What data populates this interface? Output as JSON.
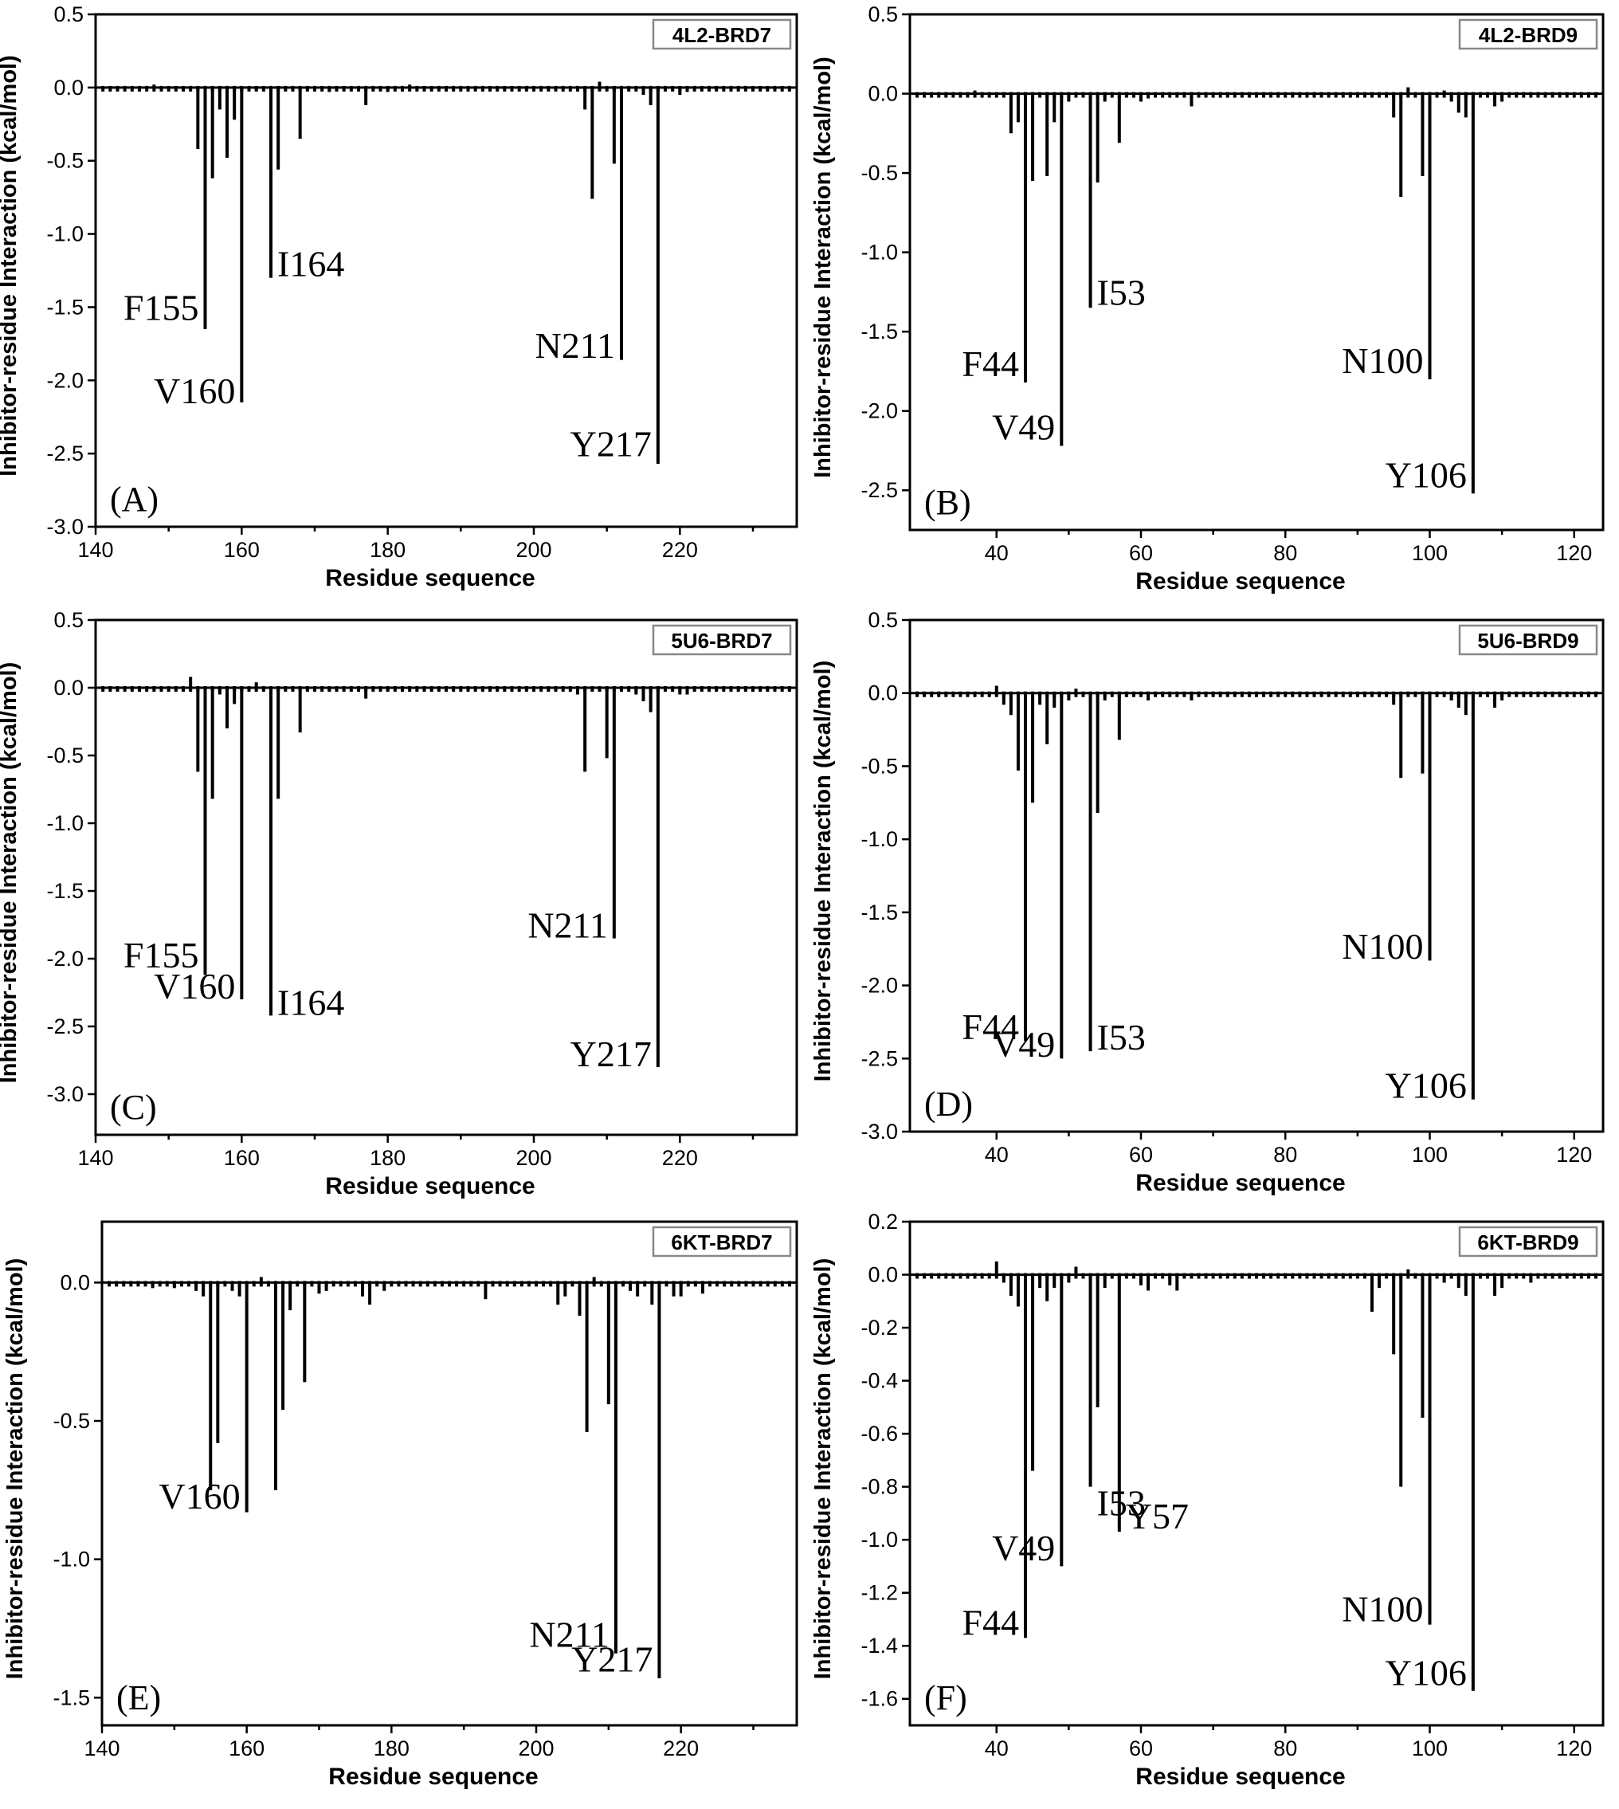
{
  "chart_data": [
    {
      "type": "bar",
      "panel_label": "(A)",
      "tag": "4L2-BRD7",
      "xlabel": "Residue sequence",
      "ylabel": "Inhibitor-residue Interaction (kcal/mol)",
      "xlim": [
        140,
        236
      ],
      "ylim": [
        -3.0,
        0.5
      ],
      "xticks": [
        140,
        160,
        180,
        200,
        220
      ],
      "yticks": [
        0.5,
        0.0,
        -0.5,
        -1.0,
        -1.5,
        -2.0,
        -2.5,
        -3.0
      ],
      "ytick_labels": [
        "0.5",
        "0.0",
        "-0.5",
        "-1.0",
        "-1.5",
        "-2.0",
        "-2.5",
        "-3.0"
      ],
      "bars": [
        {
          "x": 148,
          "value": 0.02
        },
        {
          "x": 152,
          "value": -0.02
        },
        {
          "x": 154,
          "value": -0.42
        },
        {
          "x": 155,
          "value": -1.65
        },
        {
          "x": 156,
          "value": -0.62
        },
        {
          "x": 157,
          "value": -0.15
        },
        {
          "x": 158,
          "value": -0.48
        },
        {
          "x": 159,
          "value": -0.22
        },
        {
          "x": 160,
          "value": -2.15
        },
        {
          "x": 162,
          "value": -0.02
        },
        {
          "x": 164,
          "value": -1.3
        },
        {
          "x": 165,
          "value": -0.56
        },
        {
          "x": 168,
          "value": -0.35
        },
        {
          "x": 172,
          "value": -0.03
        },
        {
          "x": 177,
          "value": -0.12
        },
        {
          "x": 180,
          "value": -0.03
        },
        {
          "x": 183,
          "value": 0.02
        },
        {
          "x": 207,
          "value": -0.15
        },
        {
          "x": 208,
          "value": -0.76
        },
        {
          "x": 209,
          "value": 0.04
        },
        {
          "x": 211,
          "value": -0.52
        },
        {
          "x": 212,
          "value": -1.86
        },
        {
          "x": 215,
          "value": -0.05
        },
        {
          "x": 216,
          "value": -0.12
        },
        {
          "x": 217,
          "value": -2.57
        },
        {
          "x": 220,
          "value": -0.05
        },
        {
          "x": 221,
          "value": -0.03
        }
      ],
      "annotations": [
        {
          "text": "F155",
          "x": 155,
          "y": -1.5
        },
        {
          "text": "V160",
          "x": 160,
          "y": -2.07
        },
        {
          "text": "I164",
          "x": 164,
          "y": -1.2
        },
        {
          "text": "N211",
          "x": 212,
          "y": -1.76
        },
        {
          "text": "Y217",
          "x": 217,
          "y": -2.43
        }
      ]
    },
    {
      "type": "bar",
      "panel_label": "(B)",
      "tag": "4L2-BRD9",
      "xlabel": "Residue sequence",
      "ylabel": "Inhibitor-residue Interaction (kcal/mol)",
      "xlim": [
        28,
        124
      ],
      "ylim": [
        -2.75,
        0.5
      ],
      "xticks": [
        40,
        60,
        80,
        100,
        120
      ],
      "yticks": [
        0.5,
        0.0,
        -0.5,
        -1.0,
        -1.5,
        -2.0,
        -2.5
      ],
      "ytick_labels": [
        "0.5",
        "0.0",
        "-0.5",
        "-1.0",
        "-1.5",
        "-2.0",
        "-2.5"
      ],
      "bars": [
        {
          "x": 37,
          "value": 0.02
        },
        {
          "x": 42,
          "value": -0.25
        },
        {
          "x": 43,
          "value": -0.18
        },
        {
          "x": 44,
          "value": -1.82
        },
        {
          "x": 45,
          "value": -0.55
        },
        {
          "x": 47,
          "value": -0.52
        },
        {
          "x": 48,
          "value": -0.18
        },
        {
          "x": 49,
          "value": -2.22
        },
        {
          "x": 50,
          "value": -0.05
        },
        {
          "x": 53,
          "value": -1.35
        },
        {
          "x": 54,
          "value": -0.56
        },
        {
          "x": 55,
          "value": -0.05
        },
        {
          "x": 57,
          "value": -0.31
        },
        {
          "x": 60,
          "value": -0.05
        },
        {
          "x": 61,
          "value": -0.03
        },
        {
          "x": 67,
          "value": -0.08
        },
        {
          "x": 95,
          "value": -0.15
        },
        {
          "x": 96,
          "value": -0.65
        },
        {
          "x": 97,
          "value": 0.04
        },
        {
          "x": 99,
          "value": -0.52
        },
        {
          "x": 100,
          "value": -1.8
        },
        {
          "x": 102,
          "value": 0.02
        },
        {
          "x": 103,
          "value": -0.05
        },
        {
          "x": 104,
          "value": -0.12
        },
        {
          "x": 105,
          "value": -0.15
        },
        {
          "x": 106,
          "value": -2.52
        },
        {
          "x": 109,
          "value": -0.08
        },
        {
          "x": 110,
          "value": -0.05
        }
      ],
      "annotations": [
        {
          "text": "F44",
          "x": 44,
          "y": -1.7
        },
        {
          "text": "V49",
          "x": 49,
          "y": -2.1
        },
        {
          "text": "I53",
          "x": 53,
          "y": -1.25
        },
        {
          "text": "N100",
          "x": 100,
          "y": -1.68
        },
        {
          "text": "Y106",
          "x": 106,
          "y": -2.4
        }
      ]
    },
    {
      "type": "bar",
      "panel_label": "(C)",
      "tag": "5U6-BRD7",
      "xlabel": "Residue sequence",
      "ylabel": "Inhibitor-residue Interaction (kcal/mol)",
      "xlim": [
        140,
        236
      ],
      "ylim": [
        -3.3,
        0.5
      ],
      "xticks": [
        140,
        160,
        180,
        200,
        220
      ],
      "yticks": [
        0.5,
        0.0,
        -0.5,
        -1.0,
        -1.5,
        -2.0,
        -2.5,
        -3.0
      ],
      "ytick_labels": [
        "0.5",
        "0.0",
        "-0.5",
        "-1.0",
        "-1.5",
        "-2.0",
        "-2.5",
        "-3.0"
      ],
      "bars": [
        {
          "x": 153,
          "value": 0.08
        },
        {
          "x": 154,
          "value": -0.62
        },
        {
          "x": 155,
          "value": -2.12
        },
        {
          "x": 156,
          "value": -0.82
        },
        {
          "x": 157,
          "value": -0.05
        },
        {
          "x": 158,
          "value": -0.3
        },
        {
          "x": 159,
          "value": -0.12
        },
        {
          "x": 160,
          "value": -2.3
        },
        {
          "x": 162,
          "value": 0.04
        },
        {
          "x": 164,
          "value": -2.42
        },
        {
          "x": 165,
          "value": -0.82
        },
        {
          "x": 168,
          "value": -0.33
        },
        {
          "x": 172,
          "value": -0.03
        },
        {
          "x": 177,
          "value": -0.08
        },
        {
          "x": 180,
          "value": -0.03
        },
        {
          "x": 206,
          "value": -0.05
        },
        {
          "x": 207,
          "value": -0.62
        },
        {
          "x": 210,
          "value": -0.52
        },
        {
          "x": 211,
          "value": -1.85
        },
        {
          "x": 214,
          "value": -0.05
        },
        {
          "x": 215,
          "value": -0.1
        },
        {
          "x": 216,
          "value": -0.18
        },
        {
          "x": 217,
          "value": -2.8
        },
        {
          "x": 220,
          "value": -0.05
        },
        {
          "x": 221,
          "value": -0.05
        }
      ],
      "annotations": [
        {
          "text": "F155",
          "x": 155,
          "y": -1.97
        },
        {
          "text": "V160",
          "x": 160,
          "y": -2.2
        },
        {
          "text": "I164",
          "x": 164,
          "y": -2.32
        },
        {
          "text": "N211",
          "x": 211,
          "y": -1.75
        },
        {
          "text": "Y217",
          "x": 217,
          "y": -2.7
        }
      ]
    },
    {
      "type": "bar",
      "panel_label": "(D)",
      "tag": "5U6-BRD9",
      "xlabel": "Residue sequence",
      "ylabel": "Inhibitor-residue Interaction (kcal/mol)",
      "xlim": [
        28,
        124
      ],
      "ylim": [
        -3.0,
        0.5
      ],
      "xticks": [
        40,
        60,
        80,
        100,
        120
      ],
      "yticks": [
        0.5,
        0.0,
        -0.5,
        -1.0,
        -1.5,
        -2.0,
        -2.5,
        -3.0
      ],
      "ytick_labels": [
        "0.5",
        "0.0",
        "-0.5",
        "-1.0",
        "-1.5",
        "-2.0",
        "-2.5",
        "-3.0"
      ],
      "bars": [
        {
          "x": 40,
          "value": 0.05
        },
        {
          "x": 41,
          "value": -0.08
        },
        {
          "x": 42,
          "value": -0.15
        },
        {
          "x": 43,
          "value": -0.53
        },
        {
          "x": 44,
          "value": -2.38
        },
        {
          "x": 45,
          "value": -0.75
        },
        {
          "x": 46,
          "value": -0.08
        },
        {
          "x": 47,
          "value": -0.35
        },
        {
          "x": 48,
          "value": -0.1
        },
        {
          "x": 49,
          "value": -2.5
        },
        {
          "x": 50,
          "value": -0.05
        },
        {
          "x": 51,
          "value": 0.03
        },
        {
          "x": 53,
          "value": -2.45
        },
        {
          "x": 54,
          "value": -0.82
        },
        {
          "x": 55,
          "value": -0.05
        },
        {
          "x": 57,
          "value": -0.32
        },
        {
          "x": 61,
          "value": -0.05
        },
        {
          "x": 67,
          "value": -0.05
        },
        {
          "x": 95,
          "value": -0.08
        },
        {
          "x": 96,
          "value": -0.58
        },
        {
          "x": 99,
          "value": -0.55
        },
        {
          "x": 100,
          "value": -1.83
        },
        {
          "x": 103,
          "value": -0.05
        },
        {
          "x": 104,
          "value": -0.1
        },
        {
          "x": 105,
          "value": -0.15
        },
        {
          "x": 106,
          "value": -2.78
        },
        {
          "x": 109,
          "value": -0.1
        },
        {
          "x": 110,
          "value": -0.05
        }
      ],
      "annotations": [
        {
          "text": "F44",
          "x": 44,
          "y": -2.28
        },
        {
          "text": "V49",
          "x": 49,
          "y": -2.4
        },
        {
          "text": "I53",
          "x": 53,
          "y": -2.35
        },
        {
          "text": "N100",
          "x": 100,
          "y": -1.73
        },
        {
          "text": "Y106",
          "x": 106,
          "y": -2.68
        }
      ]
    },
    {
      "type": "bar",
      "panel_label": "(E)",
      "tag": "6KT-BRD7",
      "xlabel": "Residue sequence",
      "ylabel": "Inhibitor-residue Interaction (kcal/mol)",
      "xlim": [
        140,
        236
      ],
      "ylim": [
        -1.6,
        0.22
      ],
      "xticks": [
        140,
        160,
        180,
        200,
        220
      ],
      "yticks": [
        0.0,
        -0.5,
        -1.0,
        -1.5
      ],
      "ytick_labels": [
        "0.0",
        "-0.5",
        "-1.0",
        "-1.5"
      ],
      "bars": [
        {
          "x": 147,
          "value": -0.02
        },
        {
          "x": 150,
          "value": -0.02
        },
        {
          "x": 153,
          "value": -0.03
        },
        {
          "x": 154,
          "value": -0.05
        },
        {
          "x": 155,
          "value": -0.75
        },
        {
          "x": 156,
          "value": -0.58
        },
        {
          "x": 158,
          "value": -0.03
        },
        {
          "x": 159,
          "value": -0.05
        },
        {
          "x": 160,
          "value": -0.83
        },
        {
          "x": 162,
          "value": 0.02
        },
        {
          "x": 164,
          "value": -0.75
        },
        {
          "x": 165,
          "value": -0.46
        },
        {
          "x": 166,
          "value": -0.1
        },
        {
          "x": 168,
          "value": -0.36
        },
        {
          "x": 170,
          "value": -0.04
        },
        {
          "x": 171,
          "value": -0.03
        },
        {
          "x": 176,
          "value": -0.05
        },
        {
          "x": 177,
          "value": -0.08
        },
        {
          "x": 179,
          "value": -0.03
        },
        {
          "x": 193,
          "value": -0.06
        },
        {
          "x": 203,
          "value": -0.08
        },
        {
          "x": 204,
          "value": -0.05
        },
        {
          "x": 206,
          "value": -0.12
        },
        {
          "x": 207,
          "value": -0.54
        },
        {
          "x": 208,
          "value": 0.02
        },
        {
          "x": 210,
          "value": -0.44
        },
        {
          "x": 211,
          "value": -1.34
        },
        {
          "x": 213,
          "value": -0.03
        },
        {
          "x": 214,
          "value": -0.05
        },
        {
          "x": 216,
          "value": -0.08
        },
        {
          "x": 217,
          "value": -1.43
        },
        {
          "x": 219,
          "value": -0.05
        },
        {
          "x": 220,
          "value": -0.05
        },
        {
          "x": 223,
          "value": -0.04
        }
      ],
      "annotations": [
        {
          "text": "V160",
          "x": 160,
          "y": -0.77
        },
        {
          "text": "N211",
          "x": 211,
          "y": -1.27
        },
        {
          "text": "Y217",
          "x": 217,
          "y": -1.36
        }
      ]
    },
    {
      "type": "bar",
      "panel_label": "(F)",
      "tag": "6KT-BRD9",
      "xlabel": "Residue sequence",
      "ylabel": "Inhibitor-residue Interaction (kcal/mol)",
      "xlim": [
        28,
        124
      ],
      "ylim": [
        -1.7,
        0.2
      ],
      "xticks": [
        40,
        60,
        80,
        100,
        120
      ],
      "yticks": [
        0.2,
        0.0,
        -0.2,
        -0.4,
        -0.6,
        -0.8,
        -1.0,
        -1.2,
        -1.4,
        -1.6
      ],
      "ytick_labels": [
        "0.2",
        "0.0",
        "-0.2",
        "-0.4",
        "-0.6",
        "-0.8",
        "-1.0",
        "-1.2",
        "-1.4",
        "-1.6"
      ],
      "bars": [
        {
          "x": 40,
          "value": 0.05
        },
        {
          "x": 41,
          "value": -0.03
        },
        {
          "x": 42,
          "value": -0.08
        },
        {
          "x": 43,
          "value": -0.12
        },
        {
          "x": 44,
          "value": -1.37
        },
        {
          "x": 45,
          "value": -0.74
        },
        {
          "x": 46,
          "value": -0.05
        },
        {
          "x": 47,
          "value": -0.1
        },
        {
          "x": 48,
          "value": -0.05
        },
        {
          "x": 49,
          "value": -1.1
        },
        {
          "x": 50,
          "value": -0.03
        },
        {
          "x": 51,
          "value": 0.03
        },
        {
          "x": 53,
          "value": -0.8
        },
        {
          "x": 54,
          "value": -0.5
        },
        {
          "x": 55,
          "value": -0.05
        },
        {
          "x": 57,
          "value": -0.97
        },
        {
          "x": 60,
          "value": -0.04
        },
        {
          "x": 61,
          "value": -0.06
        },
        {
          "x": 64,
          "value": -0.04
        },
        {
          "x": 65,
          "value": -0.06
        },
        {
          "x": 92,
          "value": -0.14
        },
        {
          "x": 93,
          "value": -0.05
        },
        {
          "x": 95,
          "value": -0.3
        },
        {
          "x": 96,
          "value": -0.8
        },
        {
          "x": 97,
          "value": 0.02
        },
        {
          "x": 99,
          "value": -0.54
        },
        {
          "x": 100,
          "value": -1.32
        },
        {
          "x": 102,
          "value": -0.03
        },
        {
          "x": 104,
          "value": -0.05
        },
        {
          "x": 105,
          "value": -0.08
        },
        {
          "x": 106,
          "value": -1.57
        },
        {
          "x": 109,
          "value": -0.08
        },
        {
          "x": 110,
          "value": -0.05
        },
        {
          "x": 114,
          "value": -0.03
        }
      ],
      "annotations": [
        {
          "text": "F44",
          "x": 44,
          "y": -1.31
        },
        {
          "text": "V49",
          "x": 49,
          "y": -1.03
        },
        {
          "text": "I53",
          "x": 53,
          "y": -0.86
        },
        {
          "text": "Y57",
          "x": 57,
          "y": -0.91
        },
        {
          "text": "N100",
          "x": 100,
          "y": -1.26
        },
        {
          "text": "Y106",
          "x": 106,
          "y": -1.5
        }
      ]
    }
  ]
}
